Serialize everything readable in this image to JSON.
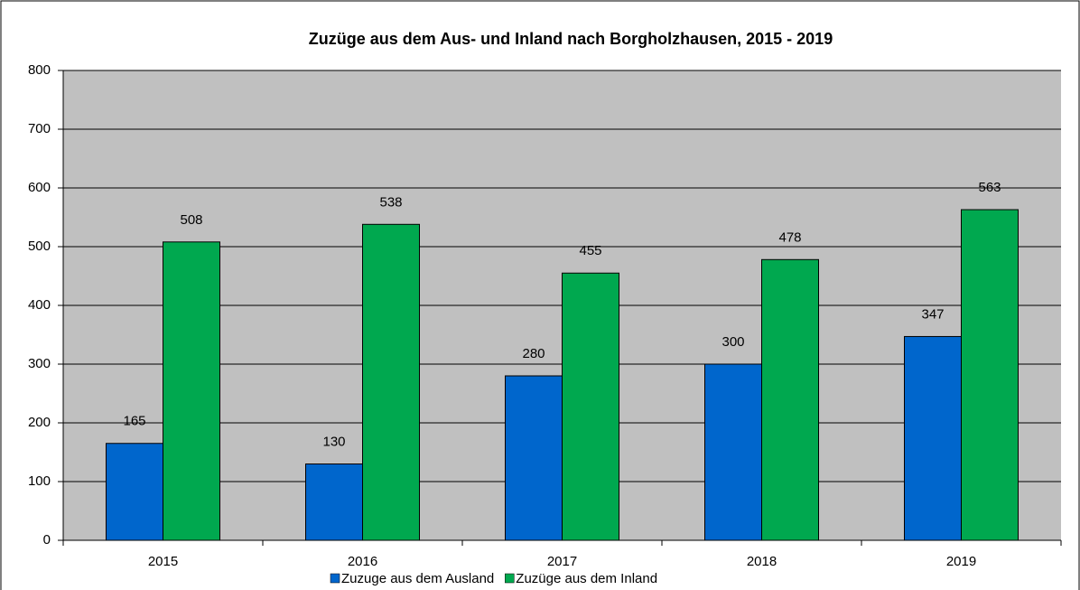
{
  "chart_data": {
    "type": "bar",
    "title": "Zuzüge aus dem Aus- und Inland nach Borgholzhausen, 2015 - 2019",
    "categories": [
      "2015",
      "2016",
      "2017",
      "2018",
      "2019"
    ],
    "series": [
      {
        "name": "Zuzuge aus dem Ausland",
        "color": "#0066cc",
        "values": [
          165,
          130,
          280,
          300,
          347
        ]
      },
      {
        "name": "Zuzüge aus dem Inland",
        "color": "#00a84f",
        "values": [
          508,
          538,
          455,
          478,
          563
        ]
      }
    ],
    "ylim": [
      0,
      800
    ],
    "yticks": [
      0,
      100,
      200,
      300,
      400,
      500,
      600,
      700,
      800
    ],
    "grid": true,
    "legend": "bottom"
  }
}
